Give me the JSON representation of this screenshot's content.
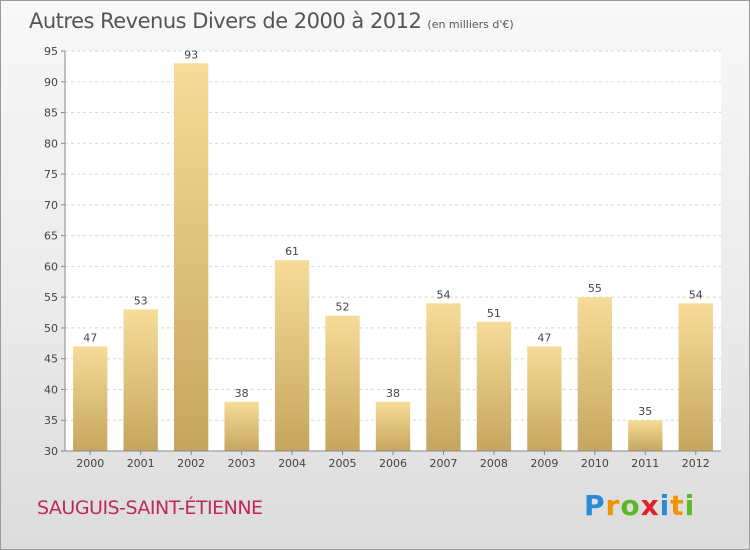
{
  "title": "Autres Revenus Divers de 2000 à 2012",
  "subtitle": "(en milliers d'€)",
  "commune": "SAUGUIS-SAINT-ÉTIENNE",
  "logo": {
    "letters": [
      "P",
      "r",
      "o",
      "x",
      "i",
      "t",
      "i"
    ],
    "colors": [
      "#2a8bd4",
      "#f29400",
      "#5cb82a",
      "#e0202a",
      "#2a8bd4",
      "#f29400",
      "#5cb82a"
    ]
  },
  "colors": {
    "bar_top": "#f6dc98",
    "bar_bottom": "#c6a65e",
    "grid": "#d8d8d8",
    "axis": "#888888",
    "plot_bg": "#ffffff"
  },
  "chart_data": {
    "type": "bar",
    "title": "Autres Revenus Divers de 2000 à 2012",
    "subtitle": "(en milliers d'€)",
    "categories": [
      "2000",
      "2001",
      "2002",
      "2003",
      "2004",
      "2005",
      "2006",
      "2007",
      "2008",
      "2009",
      "2010",
      "2011",
      "2012"
    ],
    "values": [
      47,
      53,
      93,
      38,
      61,
      52,
      38,
      54,
      51,
      47,
      55,
      35,
      54
    ],
    "ylim": [
      30,
      95
    ],
    "yticks": [
      30,
      35,
      40,
      45,
      50,
      55,
      60,
      65,
      70,
      75,
      80,
      85,
      90,
      95
    ],
    "grid": true,
    "data_labels": true,
    "legend": "none"
  }
}
